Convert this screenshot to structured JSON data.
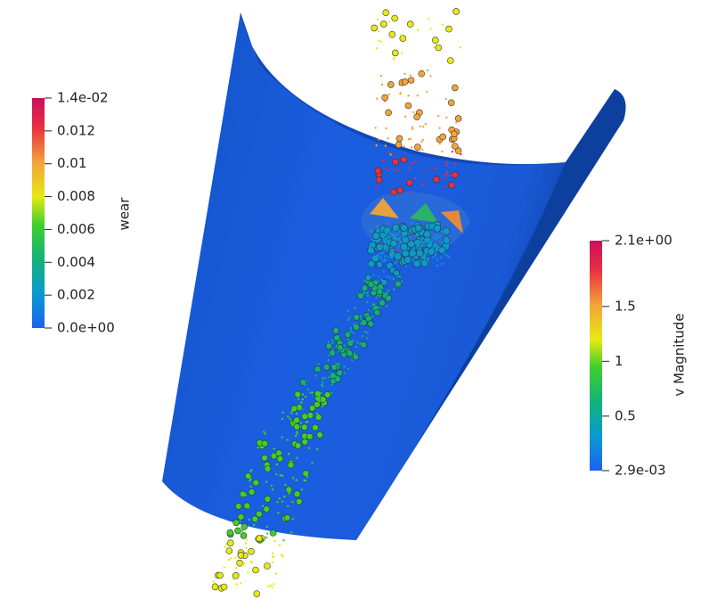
{
  "colorbars": [
    {
      "title": "wear",
      "range": [
        0,
        0.014
      ],
      "ticks": [
        {
          "value": 0.014,
          "label": "1.4e-02"
        },
        {
          "value": 0.012,
          "label": "0.012"
        },
        {
          "value": 0.01,
          "label": "0.01"
        },
        {
          "value": 0.008,
          "label": "0.008"
        },
        {
          "value": 0.006,
          "label": "0.006"
        },
        {
          "value": 0.004,
          "label": "0.004"
        },
        {
          "value": 0.002,
          "label": "0.002"
        },
        {
          "value": 0,
          "label": "0.0e+00"
        }
      ]
    },
    {
      "title": "v Magnitude",
      "range": [
        0.0029,
        2.1
      ],
      "ticks": [
        {
          "value": 2.1,
          "label": "2.1e+00"
        },
        {
          "value": 1.5,
          "label": "1.5"
        },
        {
          "value": 1,
          "label": "1"
        },
        {
          "value": 0.5,
          "label": "0.5"
        },
        {
          "value": 0.0029,
          "label": "2.9e-03"
        }
      ]
    }
  ]
}
